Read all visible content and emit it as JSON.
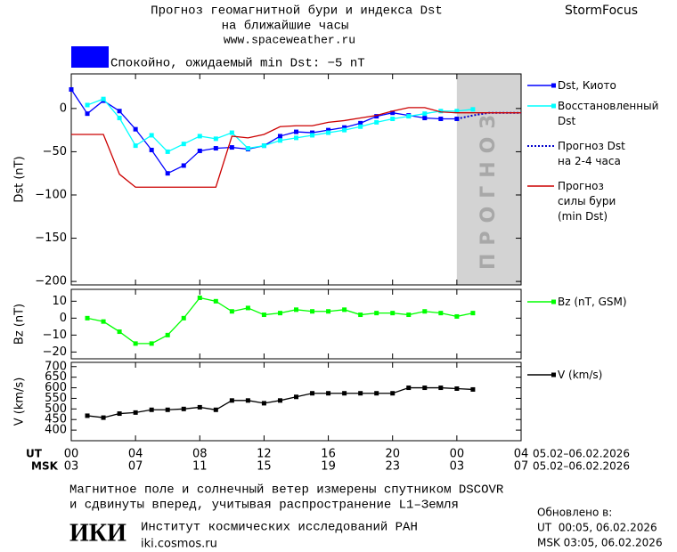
{
  "header": {
    "title": "Прогноз геомагнитной бури и индекса Dst",
    "subtitle": "на ближайшие часы",
    "site": "www.spaceweather.ru",
    "brand": "StormFocus",
    "status": "Спокойно, ожидаемый min Dst: −5 nT",
    "status_color": "#0000ff"
  },
  "chart_data": [
    {
      "type": "line",
      "ylabel": "Dst (nT)",
      "xlim": [
        0,
        28
      ],
      "ylim": [
        -204,
        40
      ],
      "yticks": [
        0,
        {
          "value": -50,
          "label": "−50"
        },
        {
          "value": -100,
          "label": "−100"
        },
        {
          "value": -150,
          "label": "−150"
        },
        {
          "value": -200,
          "label": "−200"
        }
      ],
      "forecast_region": [
        24,
        28
      ],
      "forecast_label": "ПРОГНОЗ",
      "series": [
        {
          "name": "Dst, Киото",
          "color": "#0000ff",
          "marker": "square",
          "style": "solid",
          "x": [
            0,
            1,
            2,
            3,
            4,
            5,
            6,
            7,
            8,
            9,
            10,
            11,
            12,
            13,
            14,
            15,
            16,
            17,
            18,
            19,
            20,
            21,
            22,
            23,
            24
          ],
          "values": [
            22,
            -6,
            9,
            -3,
            -24,
            -48,
            -75,
            -66,
            -49,
            -46,
            -45,
            -47,
            -43,
            -32,
            -27,
            -28,
            -25,
            -22,
            -17,
            -9,
            -5,
            -8,
            -11,
            -12,
            -12
          ]
        },
        {
          "name": "Восстановленный\nDst",
          "color": "#00ffff",
          "marker": "square",
          "style": "solid",
          "x": [
            1,
            2,
            3,
            4,
            5,
            6,
            7,
            8,
            9,
            10,
            11,
            12,
            13,
            14,
            15,
            16,
            17,
            18,
            19,
            20,
            21,
            22,
            23,
            24,
            25
          ],
          "values": [
            4,
            11,
            -11,
            -43,
            -31,
            -50,
            -41,
            -32,
            -35,
            -28,
            -46,
            -43,
            -37,
            -34,
            -31,
            -28,
            -25,
            -21,
            -16,
            -12,
            -9,
            -6,
            -3,
            -3,
            -1
          ]
        },
        {
          "name": "Прогноз Dst\nна 2-4 часа",
          "color": "#0000cc",
          "marker": "none",
          "style": "dotted",
          "x": [
            24,
            25,
            26,
            27,
            28
          ],
          "values": [
            -12,
            -8,
            -5,
            -5,
            -5
          ]
        },
        {
          "name": "Прогноз\nсилы бури\n(min Dst)",
          "color": "#cc0000",
          "marker": "none",
          "style": "solid",
          "x": [
            0,
            1,
            2,
            3,
            4,
            5,
            6,
            7,
            8,
            9,
            10,
            11,
            12,
            13,
            14,
            15,
            16,
            17,
            18,
            19,
            20,
            21,
            22,
            23,
            24,
            25,
            26,
            27,
            28
          ],
          "values": [
            -30,
            -30,
            -30,
            -76,
            -91,
            -91,
            -91,
            -91,
            -91,
            -91,
            -32,
            -34,
            -30,
            -21,
            -20,
            -20,
            -16,
            -14,
            -11,
            -8,
            -3,
            1,
            1,
            -4,
            -5,
            -5,
            -5,
            -5,
            -5
          ]
        }
      ]
    },
    {
      "type": "line",
      "ylabel": "Bz (nT)",
      "xlim": [
        0,
        28
      ],
      "ylim": [
        -24,
        17
      ],
      "yticks": [
        10,
        0,
        {
          "value": -10,
          "label": "−10"
        },
        {
          "value": -20,
          "label": "−20"
        }
      ],
      "series": [
        {
          "name": "Bz (nT, GSM)",
          "color": "#00ff00",
          "marker": "square",
          "style": "solid",
          "x": [
            1,
            2,
            3,
            4,
            5,
            6,
            7,
            8,
            9,
            10,
            11,
            12,
            13,
            14,
            15,
            16,
            17,
            18,
            19,
            20,
            21,
            22,
            23,
            24,
            25
          ],
          "values": [
            0,
            -2,
            -8,
            -15,
            -15,
            -10,
            0,
            12,
            10,
            4,
            6,
            2,
            3,
            5,
            4,
            4,
            5,
            2,
            3,
            3,
            2,
            4,
            3,
            1,
            3
          ]
        }
      ]
    },
    {
      "type": "line",
      "ylabel": "V (km/s)",
      "xlim": [
        0,
        28
      ],
      "ylim": [
        350,
        720
      ],
      "yticks": [
        400,
        450,
        500,
        550,
        600,
        650,
        700
      ],
      "series": [
        {
          "name": "V (km/s)",
          "color": "#000000",
          "marker": "square",
          "style": "solid",
          "x": [
            1,
            2,
            3,
            4,
            5,
            6,
            7,
            8,
            9,
            10,
            11,
            12,
            13,
            14,
            15,
            16,
            17,
            18,
            19,
            20,
            21,
            22,
            23,
            24,
            25
          ],
          "values": [
            468,
            459,
            478,
            483,
            496,
            496,
            500,
            508,
            496,
            540,
            540,
            527,
            540,
            557,
            574,
            574,
            574,
            574,
            574,
            574,
            600,
            600,
            600,
            596,
            592
          ]
        }
      ]
    }
  ],
  "x_axis": {
    "ut_label": "UT",
    "msk_label": "MSK",
    "ut_ticks": [
      {
        "value": 0,
        "label": "00"
      },
      {
        "value": 4,
        "label": "04"
      },
      {
        "value": 8,
        "label": "08"
      },
      {
        "value": 12,
        "label": "12"
      },
      {
        "value": 16,
        "label": "16"
      },
      {
        "value": 20,
        "label": "20"
      },
      {
        "value": 24,
        "label": "00"
      },
      {
        "value": 28,
        "label": "04"
      }
    ],
    "msk_ticks": [
      {
        "value": 0,
        "label": "03"
      },
      {
        "value": 4,
        "label": "07"
      },
      {
        "value": 8,
        "label": "11"
      },
      {
        "value": 12,
        "label": "15"
      },
      {
        "value": 16,
        "label": "19"
      },
      {
        "value": 20,
        "label": "23"
      },
      {
        "value": 24,
        "label": "03"
      },
      {
        "value": 28,
        "label": "07"
      }
    ],
    "ut_range": "05.02–06.02.2026",
    "msk_range": "05.02–06.02.2026"
  },
  "footer": {
    "note_line1": "Магнитное поле и солнечный ветер измерены спутником DSCOVR",
    "note_line2": "и сдвинуты вперед, учитывая распространение L1–Земля",
    "logo": "ИКИ",
    "institute": "Институт космических исследований РАН",
    "institute_site": "iki.cosmos.ru",
    "updated_label": "Обновлено в:",
    "updated_ut": "UT  00:05, 06.02.2026",
    "updated_msk": "MSK 03:05, 06.02.2026"
  }
}
